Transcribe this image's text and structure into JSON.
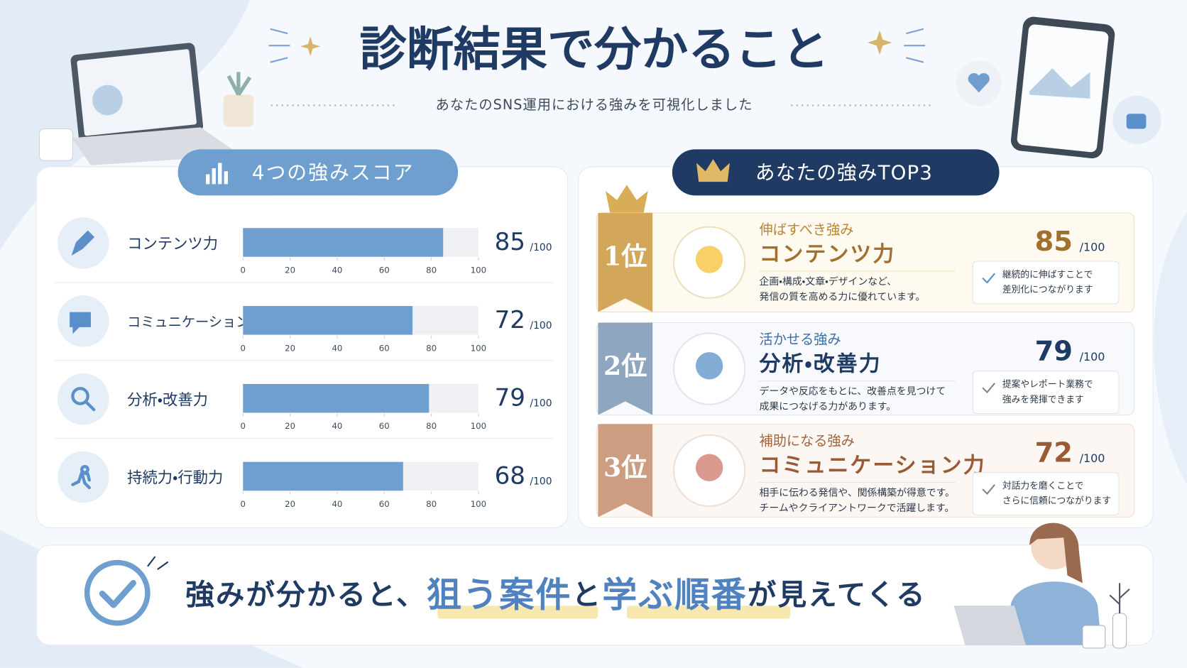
{
  "header": {
    "title": "診断結果で分かること",
    "subtitle": "あなたのSNS運用における強みを可視化しました"
  },
  "scores": {
    "title": "4つの強みスコア",
    "unit": "/100",
    "xlim": [
      0,
      100
    ],
    "xticks": [
      0,
      20,
      40,
      60,
      80,
      100
    ],
    "items": [
      {
        "label": "コンテンツ力",
        "value": 85
      },
      {
        "label": "コミュニケーション力",
        "value": 72
      },
      {
        "label": "分析・改善力",
        "value": 79
      },
      {
        "label": "持続力・行動力",
        "value": 68
      }
    ]
  },
  "top3": {
    "title": "あなたの強みTOP3",
    "unit": "/100",
    "items": [
      {
        "rank": "1位",
        "kicker": "伸ばすべき強み",
        "name": "コンテンツ力",
        "score": 85,
        "description": [
          "企画・構成・文章・デザインなど、",
          "発信の質を高める力に優れています。"
        ],
        "note": [
          "継続的に伸ばすことで",
          "差別化につながります"
        ]
      },
      {
        "rank": "2位",
        "kicker": "活かせる強み",
        "name": "分析・改善力",
        "score": 79,
        "description": [
          "データや反応をもとに、改善点を見つけて",
          "成果につなげる力があります。"
        ],
        "note": [
          "提案やレポート業務で",
          "強みを発揮できます"
        ]
      },
      {
        "rank": "3位",
        "kicker": "補助になる強み",
        "name": "コミュニケーション力",
        "score": 72,
        "description": [
          "相手に伝わる発信や、関係構築が得意です。",
          "チームやクライアントワークで活躍します。"
        ],
        "note": [
          "対話力を磨くことで",
          "さらに信頼につながります"
        ]
      }
    ]
  },
  "footer": {
    "parts": [
      "強みが分かると、",
      "狙う案件",
      "と",
      "学ぶ順番",
      "が見えてくる"
    ]
  }
}
